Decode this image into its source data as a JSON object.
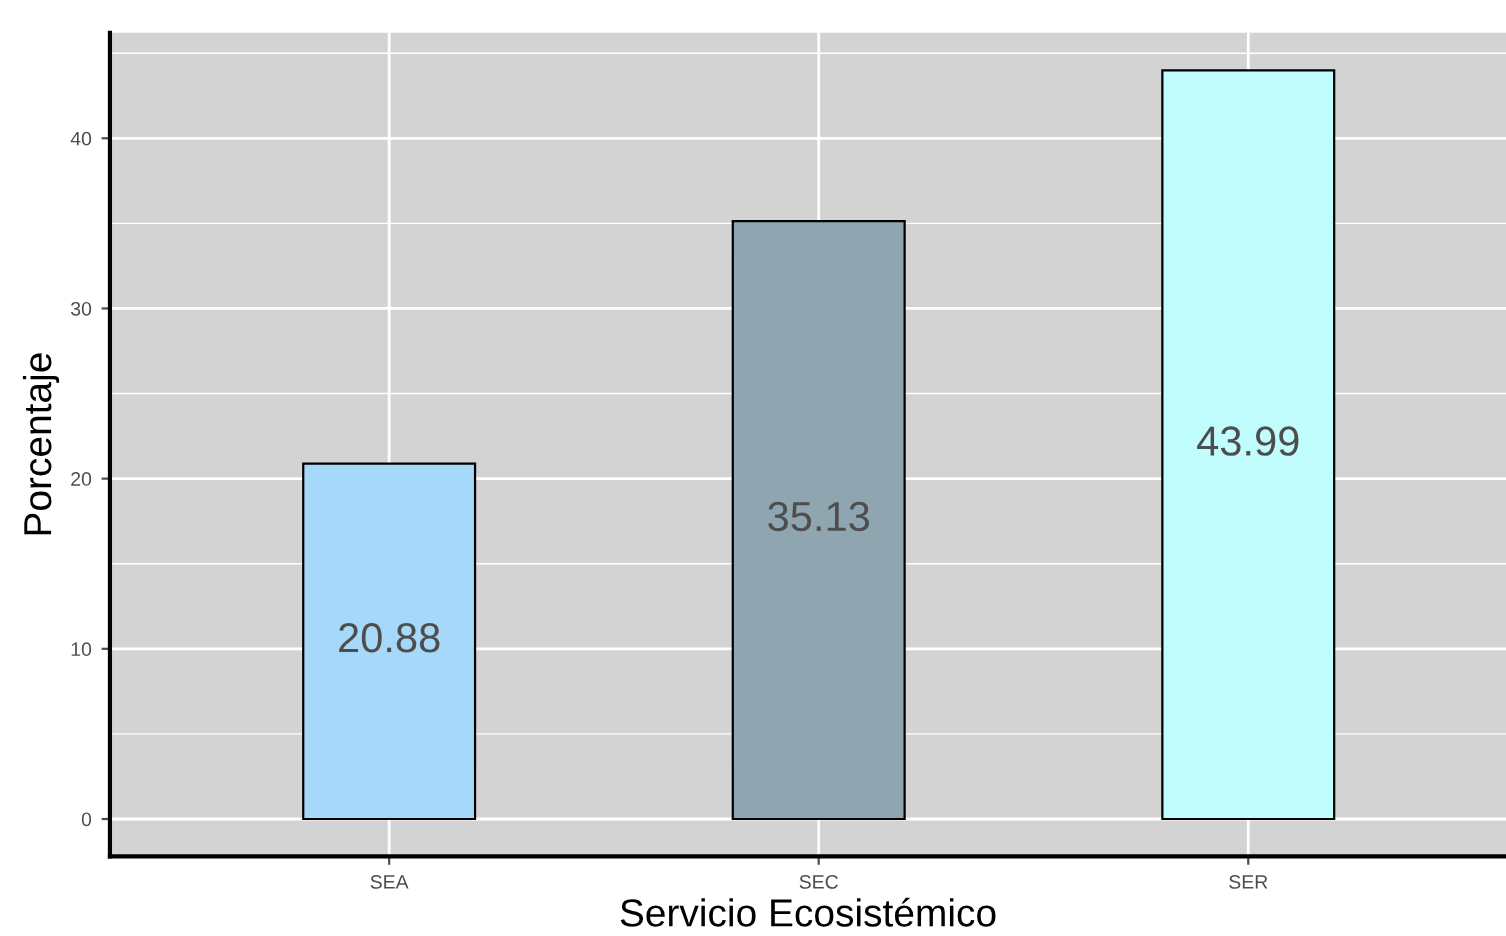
{
  "chart_data": {
    "type": "bar",
    "xlabel": "Servicio Ecosistémico",
    "ylabel": "Porcentaje",
    "categories": [
      "SEA",
      "SEC",
      "SER"
    ],
    "values": [
      20.88,
      35.13,
      43.99
    ],
    "colors": [
      "#a6d8fa",
      "#8fa6b1",
      "#c2fdfd"
    ],
    "ylim": [
      -2.2,
      46.2
    ],
    "yticks": [
      0,
      10,
      20,
      30,
      40
    ],
    "grid": true,
    "data_labels": true
  }
}
